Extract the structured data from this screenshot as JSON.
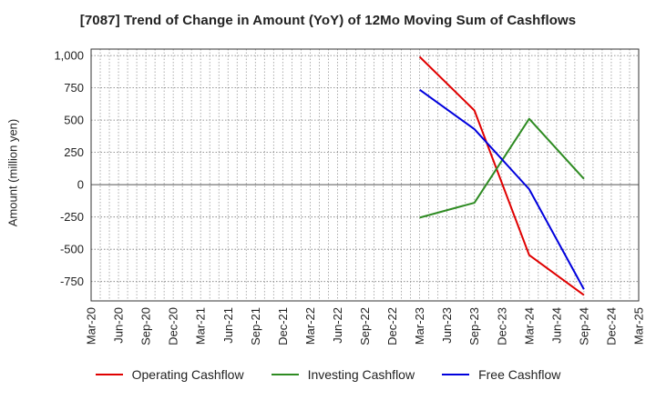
{
  "chart_data": {
    "type": "line",
    "title": "[7087]  Trend of Change in Amount (YoY) of 12Mo Moving Sum of Cashflows",
    "xlabel": "",
    "ylabel": "Amount (million yen)",
    "categories": [
      "Mar-20",
      "Jun-20",
      "Sep-20",
      "Dec-20",
      "Mar-21",
      "Jun-21",
      "Sep-21",
      "Dec-21",
      "Mar-22",
      "Jun-22",
      "Sep-22",
      "Dec-22",
      "Mar-23",
      "Jun-23",
      "Sep-23",
      "Dec-23",
      "Mar-24",
      "Jun-24",
      "Sep-24",
      "Dec-24",
      "Mar-25"
    ],
    "ylim": [
      -900,
      1050
    ],
    "yticks": [
      1000,
      750,
      500,
      250,
      0,
      -250,
      -500,
      -750
    ],
    "ytick_labels": [
      "1,000",
      "750",
      "500",
      "250",
      "0",
      "-250",
      "-500",
      "-750"
    ],
    "grid": true,
    "series": [
      {
        "name": "Operating Cashflow",
        "color": "#e00000",
        "points": [
          [
            "Mar-23",
            990
          ],
          [
            "Sep-23",
            575
          ],
          [
            "Mar-24",
            -545
          ],
          [
            "Sep-24",
            -855
          ]
        ]
      },
      {
        "name": "Investing Cashflow",
        "color": "#2e8b22",
        "points": [
          [
            "Mar-23",
            -255
          ],
          [
            "Sep-23",
            -140
          ],
          [
            "Mar-24",
            510
          ],
          [
            "Sep-24",
            45
          ]
        ]
      },
      {
        "name": "Free Cashflow",
        "color": "#0000dd",
        "points": [
          [
            "Mar-23",
            735
          ],
          [
            "Sep-23",
            430
          ],
          [
            "Mar-24",
            -35
          ],
          [
            "Sep-24",
            -810
          ]
        ]
      }
    ],
    "legend_position": "bottom"
  }
}
